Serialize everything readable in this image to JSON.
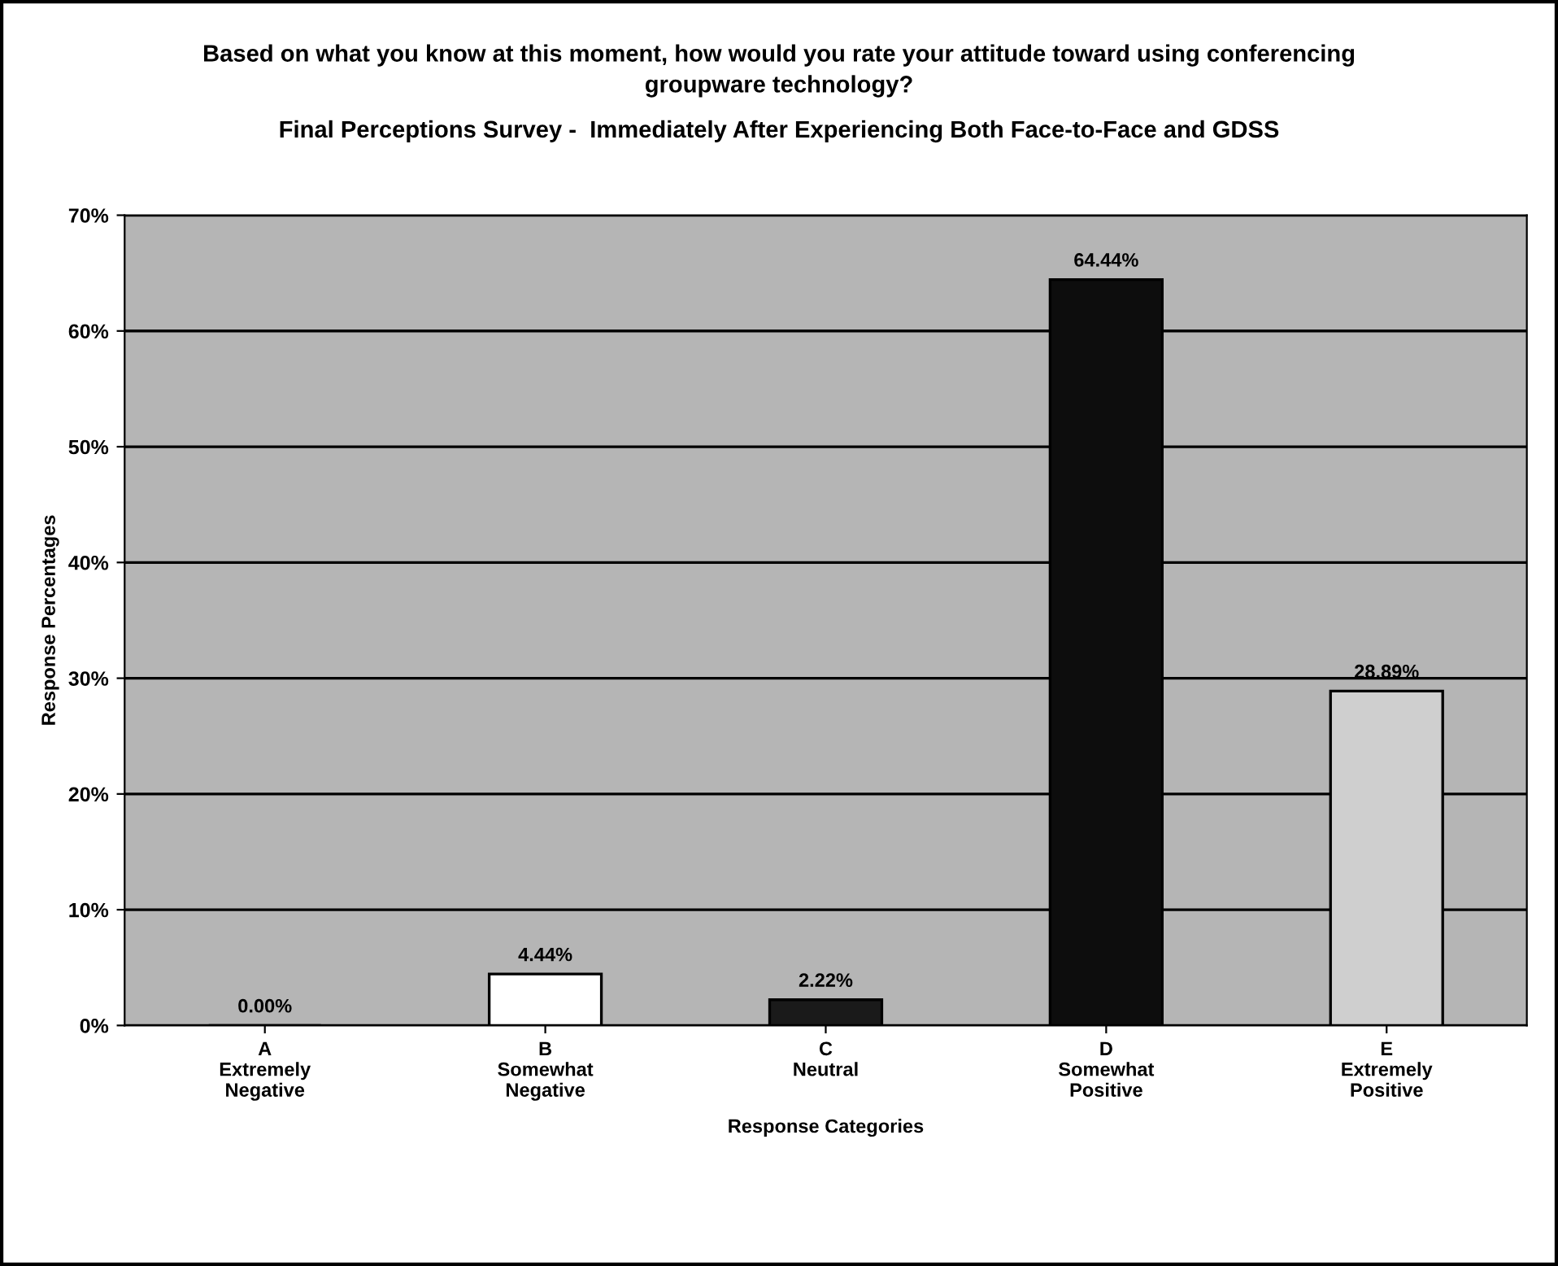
{
  "chart_data": {
    "type": "bar",
    "title": "Based on what you know at this moment, how would you rate your attitude toward using conferencing\ngroupware technology?",
    "subtitle": "Final Perceptions Survey -  Immediately After Experiencing Both Face-to-Face and GDSS",
    "xlabel": "Response Categories",
    "ylabel": "Response Percentages",
    "categories": [
      "A\nExtremely\nNegative",
      "B\nSomewhat\nNegative",
      "C\nNeutral",
      "D\nSomewhat\nPositive",
      "E\nExtremely\nPositive"
    ],
    "values": [
      0.0,
      4.44,
      2.22,
      64.44,
      28.89
    ],
    "colors": [
      "#000000",
      "#ffffff",
      "#1a1a1a",
      "#0d0d0d",
      "#cfcfcf"
    ],
    "value_labels": [
      "0.00%",
      "4.44%",
      "2.22%",
      "64.44%",
      "28.89%"
    ],
    "ylim": [
      0,
      70
    ],
    "yticks": [
      {
        "value": 0,
        "label": "0%"
      },
      {
        "value": 10,
        "label": "10%"
      },
      {
        "value": 20,
        "label": "20%"
      },
      {
        "value": 30,
        "label": "30%"
      },
      {
        "value": 40,
        "label": "40%"
      },
      {
        "value": 50,
        "label": "50%"
      },
      {
        "value": 60,
        "label": "60%"
      },
      {
        "value": 70,
        "label": "70%"
      }
    ],
    "grid": "y"
  }
}
